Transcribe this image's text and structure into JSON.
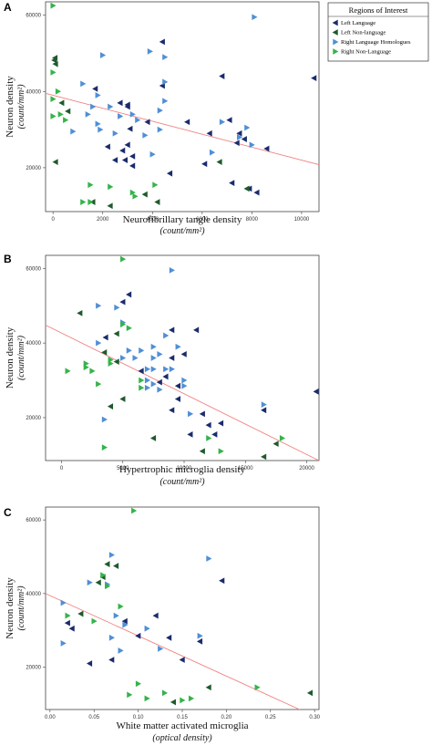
{
  "legend": {
    "title": "Regions of Interest",
    "entries": [
      {
        "key": "LL",
        "label": "Left Language",
        "color": "#1a2b6d",
        "dir": "left"
      },
      {
        "key": "LN",
        "label": "Left Non-language",
        "color": "#1f5a2c",
        "dir": "left"
      },
      {
        "key": "RL",
        "label": "Right Language Homologues",
        "color": "#4f8fd6",
        "dir": "right"
      },
      {
        "key": "RN",
        "label": "Right Non-Language",
        "color": "#35b34a",
        "dir": "right"
      }
    ]
  },
  "regression_color": "#f08080",
  "chart_data": [
    {
      "panel": "A",
      "type": "scatter",
      "xlabel": "Neurofibrillary tangle density",
      "xunit": "(count/mm²)",
      "ylabel": "Neuron density",
      "yunit": "(count/mm²)",
      "xlim": [
        -300,
        10700
      ],
      "ylim": [
        8500,
        63500
      ],
      "xticks": [
        0,
        2000,
        4000,
        6000,
        8000,
        10000
      ],
      "yticks": [
        20000,
        40000,
        60000
      ],
      "regression": [
        [
          -300,
          39500
        ],
        [
          10700,
          20800
        ]
      ],
      "points": {
        "LL": [
          [
            1700,
            40700
          ],
          [
            2700,
            37000
          ],
          [
            3000,
            36500
          ],
          [
            2200,
            25500
          ],
          [
            2800,
            24500
          ],
          [
            3000,
            26000
          ],
          [
            2500,
            22000
          ],
          [
            2900,
            22000
          ],
          [
            3200,
            20500
          ],
          [
            3100,
            30200
          ],
          [
            3800,
            32000
          ],
          [
            4400,
            53000
          ],
          [
            4400,
            41500
          ],
          [
            4700,
            18500
          ],
          [
            5400,
            32000
          ],
          [
            6100,
            21000
          ],
          [
            6300,
            29000
          ],
          [
            6800,
            44000
          ],
          [
            7100,
            32500
          ],
          [
            7200,
            16000
          ],
          [
            7400,
            26500
          ],
          [
            7500,
            29000
          ],
          [
            7700,
            27500
          ],
          [
            7900,
            14500
          ],
          [
            8200,
            13500
          ],
          [
            8600,
            25000
          ],
          [
            10500,
            43500
          ],
          [
            3000,
            36000
          ],
          [
            3200,
            23000
          ]
        ],
        "LN": [
          [
            1600,
            11000
          ],
          [
            2300,
            10000
          ],
          [
            3700,
            13000
          ],
          [
            4200,
            11000
          ],
          [
            6700,
            21500
          ],
          [
            7800,
            14500
          ],
          [
            50,
            48200
          ],
          [
            100,
            47200
          ],
          [
            80,
            48800
          ],
          [
            100,
            21500
          ],
          [
            350,
            37000
          ],
          [
            600,
            34800
          ]
        ],
        "RL": [
          [
            800,
            29500
          ],
          [
            1200,
            42000
          ],
          [
            1600,
            36000
          ],
          [
            1800,
            39000
          ],
          [
            1800,
            31500
          ],
          [
            1900,
            30000
          ],
          [
            2000,
            49500
          ],
          [
            2300,
            36000
          ],
          [
            2500,
            29000
          ],
          [
            3200,
            34000
          ],
          [
            3400,
            32500
          ],
          [
            3700,
            28500
          ],
          [
            3900,
            50500
          ],
          [
            4000,
            23500
          ],
          [
            4300,
            30000
          ],
          [
            4300,
            35000
          ],
          [
            4500,
            37500
          ],
          [
            4500,
            49000
          ],
          [
            4500,
            42500
          ],
          [
            6400,
            24000
          ],
          [
            6800,
            32000
          ],
          [
            7500,
            28000
          ],
          [
            7800,
            30500
          ],
          [
            8000,
            26000
          ],
          [
            8100,
            59500
          ],
          [
            1400,
            34000
          ],
          [
            2700,
            33500
          ]
        ],
        "RN": [
          [
            0,
            62500
          ],
          [
            0,
            45000
          ],
          [
            0,
            38000
          ],
          [
            0,
            33500
          ],
          [
            200,
            40000
          ],
          [
            300,
            34000
          ],
          [
            500,
            32500
          ],
          [
            1200,
            11000
          ],
          [
            1500,
            15500
          ],
          [
            1500,
            11000
          ],
          [
            2300,
            15000
          ],
          [
            3200,
            13500
          ],
          [
            3300,
            12500
          ],
          [
            4100,
            15500
          ]
        ]
      }
    },
    {
      "panel": "B",
      "type": "scatter",
      "xlabel": "Hypertrophic microglia density",
      "xunit": "(count/mm²)",
      "ylabel": "Neuron density",
      "yunit": "(count/mm²)",
      "xlim": [
        -1300,
        21000
      ],
      "ylim": [
        8500,
        63500
      ],
      "xticks": [
        0,
        5000,
        10000,
        15000,
        20000
      ],
      "yticks": [
        20000,
        40000,
        60000
      ],
      "regression": [
        [
          -1300,
          44800
        ],
        [
          21000,
          8500
        ]
      ],
      "points": {
        "LL": [
          [
            3600,
            41500
          ],
          [
            5500,
            53000
          ],
          [
            5000,
            51000
          ],
          [
            9000,
            43500
          ],
          [
            9000,
            36000
          ],
          [
            9500,
            28500
          ],
          [
            10000,
            37000
          ],
          [
            11000,
            43500
          ],
          [
            9000,
            22000
          ],
          [
            10500,
            15500
          ],
          [
            11500,
            21000
          ],
          [
            12000,
            18000
          ],
          [
            12500,
            15500
          ],
          [
            13000,
            18500
          ],
          [
            16500,
            22000
          ],
          [
            21000,
            27000
          ],
          [
            8000,
            29500
          ],
          [
            9500,
            25000
          ],
          [
            6500,
            32500
          ],
          [
            8500,
            31000
          ]
        ],
        "LN": [
          [
            1500,
            48000
          ],
          [
            4000,
            23000
          ],
          [
            4500,
            42500
          ],
          [
            5000,
            25000
          ],
          [
            7500,
            14500
          ],
          [
            11500,
            11000
          ],
          [
            16500,
            9500
          ],
          [
            17500,
            13000
          ],
          [
            3500,
            37500
          ],
          [
            4500,
            35000
          ]
        ],
        "RL": [
          [
            3000,
            50000
          ],
          [
            3000,
            40000
          ],
          [
            3500,
            19500
          ],
          [
            4500,
            49500
          ],
          [
            5000,
            45500
          ],
          [
            5000,
            36000
          ],
          [
            5500,
            38000
          ],
          [
            6000,
            36000
          ],
          [
            6500,
            38000
          ],
          [
            7000,
            30000
          ],
          [
            7500,
            33000
          ],
          [
            7500,
            39000
          ],
          [
            7500,
            36000
          ],
          [
            8000,
            37000
          ],
          [
            8000,
            27500
          ],
          [
            8500,
            42000
          ],
          [
            8500,
            33000
          ],
          [
            9000,
            59500
          ],
          [
            9000,
            33000
          ],
          [
            9500,
            39000
          ],
          [
            10000,
            30000
          ],
          [
            10000,
            28500
          ],
          [
            10500,
            21000
          ],
          [
            16500,
            23500
          ],
          [
            7000,
            28000
          ],
          [
            7000,
            33000
          ],
          [
            7500,
            29000
          ]
        ],
        "RN": [
          [
            500,
            32500
          ],
          [
            2000,
            33500
          ],
          [
            2000,
            34500
          ],
          [
            2500,
            32500
          ],
          [
            3000,
            29000
          ],
          [
            3500,
            12000
          ],
          [
            4000,
            34500
          ],
          [
            4000,
            35500
          ],
          [
            5000,
            62500
          ],
          [
            5000,
            45000
          ],
          [
            5500,
            44000
          ],
          [
            6500,
            30000
          ],
          [
            6500,
            28000
          ],
          [
            12000,
            14500
          ],
          [
            13000,
            11000
          ],
          [
            18000,
            14500
          ]
        ]
      }
    },
    {
      "panel": "C",
      "type": "scatter",
      "xlabel": "White matter activated microglia",
      "xunit": "(optical density)",
      "ylabel": "Neuron density",
      "yunit": "(count/mm²)",
      "xlim": [
        -0.005,
        0.305
      ],
      "ylim": [
        8500,
        63500
      ],
      "xticks": [
        0.0,
        0.05,
        0.1,
        0.15,
        0.2,
        0.25,
        0.3
      ],
      "yticks": [
        20000,
        40000,
        60000
      ],
      "regression": [
        [
          -0.005,
          40000
        ],
        [
          0.283,
          8500
        ]
      ],
      "points": {
        "LL": [
          [
            0.02,
            32000
          ],
          [
            0.025,
            30500
          ],
          [
            0.045,
            21000
          ],
          [
            0.07,
            22000
          ],
          [
            0.085,
            32500
          ],
          [
            0.1,
            28500
          ],
          [
            0.12,
            34000
          ],
          [
            0.135,
            28000
          ],
          [
            0.15,
            22000
          ],
          [
            0.17,
            27000
          ],
          [
            0.195,
            43500
          ]
        ],
        "LN": [
          [
            0.035,
            34500
          ],
          [
            0.055,
            43000
          ],
          [
            0.06,
            44500
          ],
          [
            0.065,
            48000
          ],
          [
            0.075,
            47500
          ],
          [
            0.14,
            10500
          ],
          [
            0.18,
            14500
          ],
          [
            0.295,
            13000
          ]
        ],
        "RL": [
          [
            0.015,
            37500
          ],
          [
            0.015,
            26500
          ],
          [
            0.045,
            43000
          ],
          [
            0.065,
            42500
          ],
          [
            0.07,
            50500
          ],
          [
            0.07,
            28000
          ],
          [
            0.08,
            24500
          ],
          [
            0.11,
            30500
          ],
          [
            0.125,
            25000
          ],
          [
            0.17,
            28500
          ],
          [
            0.18,
            49500
          ],
          [
            0.075,
            34000
          ],
          [
            0.085,
            31500
          ]
        ],
        "RN": [
          [
            0.02,
            34000
          ],
          [
            0.05,
            32500
          ],
          [
            0.06,
            45000
          ],
          [
            0.065,
            42000
          ],
          [
            0.08,
            36500
          ],
          [
            0.095,
            62500
          ],
          [
            0.09,
            12500
          ],
          [
            0.1,
            15500
          ],
          [
            0.11,
            11500
          ],
          [
            0.13,
            13000
          ],
          [
            0.15,
            11000
          ],
          [
            0.16,
            11500
          ],
          [
            0.235,
            14500
          ]
        ]
      }
    }
  ],
  "panel_layout_note": ""
}
